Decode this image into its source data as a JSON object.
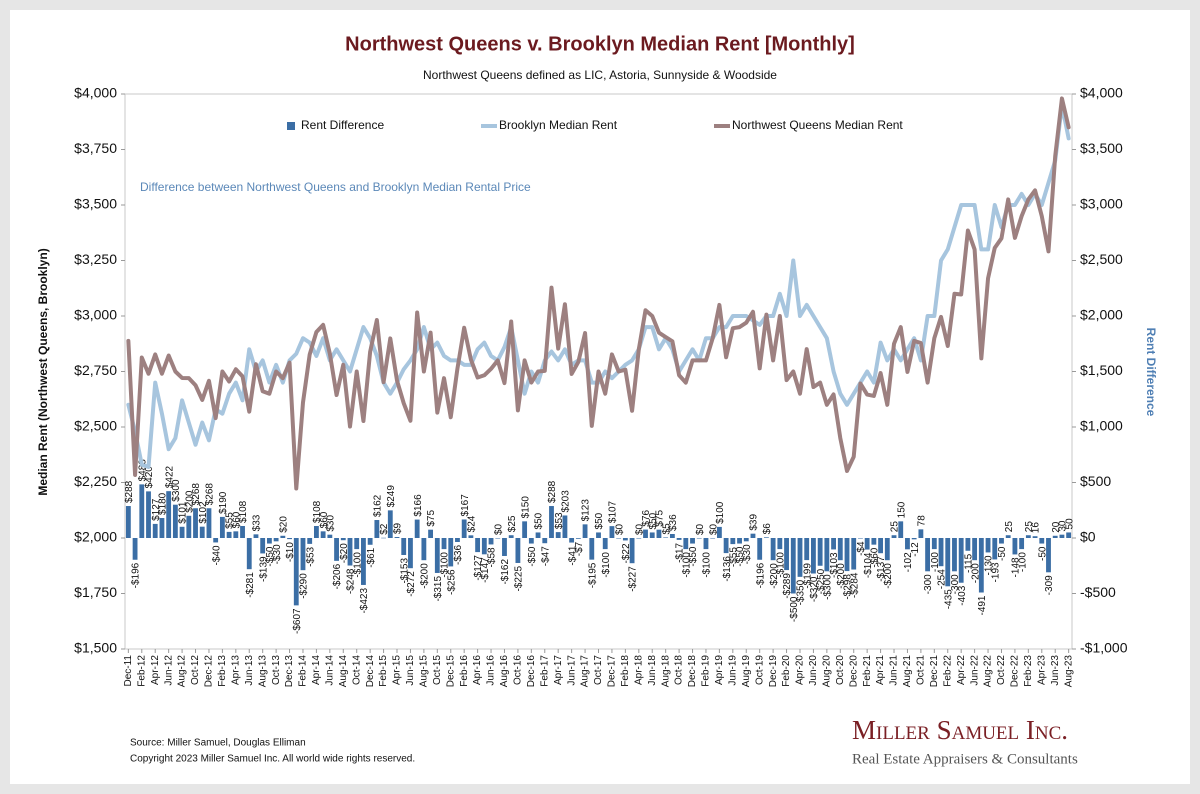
{
  "chart_data": {
    "type": "combo",
    "title": "Northwest Queens v. Brooklyn Median Rent [Monthly]",
    "subtitle": "Northwest Queens defined as LIC, Astoria, Sunnyside & Woodside",
    "annotation": "Difference between Northwest Queens and Brooklyn Median Rental Price",
    "ylabel": "Median Rent (Northwest Queens, Brooklyn)",
    "y2label": "Rent Difference",
    "legend": "top",
    "grid": false,
    "categories": [
      "Dec-11",
      null,
      "Feb-12",
      null,
      "Apr-12",
      null,
      "Jun-12",
      null,
      "Aug-12",
      null,
      "Oct-12",
      null,
      "Dec-12",
      null,
      "Feb-13",
      null,
      "Apr-13",
      null,
      "Jun-13",
      null,
      "Aug-13",
      null,
      "Oct-13",
      null,
      "Dec-13",
      null,
      "Feb-14",
      null,
      "Apr-14",
      null,
      "Jun-14",
      null,
      "Aug-14",
      null,
      "Oct-14",
      null,
      "Dec-14",
      null,
      "Feb-15",
      null,
      "Apr-15",
      null,
      "Jun-15",
      null,
      "Aug-15",
      null,
      "Oct-15",
      null,
      "Dec-15",
      null,
      "Feb-16",
      null,
      "Apr-16",
      null,
      "Jun-16",
      null,
      "Aug-16",
      null,
      "Oct-16",
      null,
      "Dec-16",
      null,
      "Feb-17",
      null,
      "Apr-17",
      null,
      "Jun-17",
      null,
      "Aug-17",
      null,
      "Oct-17",
      null,
      "Dec-17",
      null,
      "Feb-18",
      null,
      "Apr-18",
      null,
      "Jun-18",
      null,
      "Aug-18",
      null,
      "Oct-18",
      null,
      "Dec-18",
      null,
      "Feb-19",
      null,
      "Apr-19",
      null,
      "Jun-19",
      null,
      "Aug-19",
      null,
      "Oct-19",
      null,
      "Dec-19",
      null,
      "Feb-20",
      null,
      "Apr-20",
      null,
      "Jun-20",
      null,
      "Aug-20",
      null,
      "Oct-20",
      null,
      "Dec-20",
      null,
      "Feb-21",
      null,
      "Apr-21",
      null,
      "Jun-21",
      null,
      "Aug-21",
      null,
      "Oct-21",
      null,
      "Dec-21",
      null,
      "Feb-22",
      null,
      "Apr-22",
      null,
      "Jun-22",
      null,
      "Aug-22",
      null,
      "Oct-22",
      null,
      "Dec-22",
      null,
      "Feb-23",
      null,
      "Apr-23",
      null,
      "Jun-23",
      null,
      "Aug-23"
    ],
    "series": [
      {
        "name": "Rent Difference",
        "type": "bar",
        "axis": "y2",
        "color": "#3b6ea5",
        "values": [
          288,
          -196,
          483,
          420,
          127,
          180,
          422,
          300,
          101,
          200,
          268,
          102,
          268,
          -40,
          190,
          55,
          60,
          108,
          -281,
          33,
          -139,
          -50,
          -30,
          20,
          -10,
          -607,
          -290,
          -53,
          108,
          60,
          30,
          -206,
          -20,
          -248,
          -100,
          -423,
          -61,
          162,
          2,
          249,
          9,
          -153,
          -272,
          166,
          -200,
          75,
          -315,
          -100,
          -256,
          -36,
          167,
          24,
          -127,
          -147,
          -58,
          0,
          -162,
          25,
          -225,
          150,
          -50,
          50,
          -47,
          288,
          53,
          203,
          -41,
          -7,
          123,
          -195,
          50,
          -100,
          107,
          0,
          -22,
          -227,
          0,
          76,
          50,
          75,
          5,
          36,
          -17,
          -100,
          -50,
          0,
          -100,
          0,
          100,
          -136,
          -55,
          -50,
          -30,
          39,
          -196,
          6,
          -200,
          -100,
          -289,
          -500,
          -350,
          -199,
          -320,
          -250,
          -300,
          -103,
          -200,
          -298,
          -284,
          -4,
          -104,
          -60,
          -137,
          -200,
          25,
          150,
          -102,
          -12,
          78,
          -300,
          -100,
          -254,
          -435,
          -300,
          -403,
          -115,
          -200,
          -491,
          -130,
          -193,
          -50,
          25,
          -148,
          -100,
          25,
          16,
          -50,
          -309,
          20,
          30,
          50
        ],
        "value_labels": [
          "$288",
          "-$196",
          "$483",
          "$420",
          "$127",
          "$180",
          "$422",
          "$300",
          "$101",
          "$200",
          "$268",
          "$102",
          "$268",
          "-$40",
          "$190",
          "$55",
          "$60",
          "$108",
          "-$281",
          "$33",
          "-$139",
          "-$50",
          "-$30",
          "$20",
          "-$10",
          "-$607",
          "-$290",
          "-$53",
          "$108",
          "$60",
          "$30",
          "-$206",
          "-$20",
          "-$248",
          "-$100",
          "-$423",
          "-$61",
          "$162",
          "$2",
          "$249",
          "$9",
          "-$153",
          "-$272",
          "$166",
          "-$200",
          "$75",
          "-$315",
          "-$100",
          "-$256",
          "-$36",
          "$167",
          "$24",
          "-$127",
          "-$147",
          "-$58",
          "$0",
          "-$162",
          "$25",
          "-$225",
          "$150",
          "-$50",
          "$50",
          "-$47",
          "$288",
          "$53",
          "$203",
          "-$41",
          "-$7",
          "$123",
          "-$195",
          "$50",
          "-$100",
          "$107",
          "$0",
          "-$22",
          "-$227",
          "$0",
          "$76",
          "$50",
          "$75",
          "$5",
          "$36",
          "-$17",
          "-$100",
          "-$50",
          "$0",
          "-$100",
          "$0",
          "$100",
          "-$136",
          "-$55",
          "-$50",
          "-$30",
          "$39",
          "-$196",
          "$6",
          "-$200",
          "-$100",
          "-$289",
          "-$500",
          "-$350",
          "-$199",
          "-$320",
          "-$250",
          "-$300",
          "-$103",
          "-$200",
          "-$298",
          "-$284",
          "-$4",
          "-$104",
          "-$60",
          "-$137",
          "-$200",
          "25",
          "150",
          "-102",
          "-12",
          "78",
          "-300",
          "-100",
          "-254",
          "-435",
          "-300",
          "-403",
          "-115",
          "-200",
          "-491",
          "-130",
          "-193",
          "-50",
          "25",
          "-148",
          "-100",
          "25",
          "16",
          "-50",
          "-309",
          "20",
          "30",
          "50"
        ]
      },
      {
        "name": "Brooklyn Median Rent",
        "type": "line",
        "color": "#a7c5de",
        "values": [
          2600,
          2480,
          2330,
          2320,
          2700,
          2560,
          2400,
          2450,
          2620,
          2520,
          2420,
          2520,
          2440,
          2580,
          2560,
          2650,
          2700,
          2620,
          2850,
          2750,
          2800,
          2700,
          2780,
          2700,
          2800,
          2830,
          2900,
          2880,
          2820,
          2900,
          2800,
          2850,
          2800,
          2750,
          2850,
          2950,
          2900,
          2820,
          2700,
          2650,
          2700,
          2760,
          2800,
          2850,
          2950,
          2850,
          2880,
          2820,
          2800,
          2800,
          2780,
          2780,
          2850,
          2880,
          2820,
          2800,
          2860,
          2950,
          2800,
          2650,
          2750,
          2700,
          2800,
          2840,
          2800,
          2850,
          2780,
          2800,
          2800,
          2700,
          2700,
          2750,
          2720,
          2750,
          2780,
          2800,
          2850,
          2950,
          2950,
          2850,
          2900,
          2850,
          2750,
          2800,
          2850,
          2800,
          2900,
          2900,
          2950,
          2950,
          3000,
          3000,
          3000,
          2980,
          2960,
          3000,
          3000,
          3100,
          3000,
          3250,
          3000,
          3050,
          3000,
          2950,
          2900,
          2750,
          2650,
          2600,
          2650,
          2700,
          2750,
          2700,
          2880,
          2800,
          2850,
          2800,
          2850,
          2900,
          2800,
          3000,
          3000,
          3250,
          3300,
          3400,
          3500,
          3500,
          3500,
          3300,
          3300,
          3500,
          3400,
          3500,
          3500,
          3550,
          3500,
          3550,
          3500,
          3600,
          3700,
          3950,
          3800
        ]
      },
      {
        "name": "Northwest Queens Median Rent",
        "type": "line",
        "color": "#9d8080",
        "values": [
          2888,
          2284,
          2813,
          2740,
          2827,
          2740,
          2822,
          2750,
          2721,
          2720,
          2688,
          2622,
          2708,
          2540,
          2750,
          2705,
          2760,
          2728,
          2569,
          2783,
          2661,
          2650,
          2750,
          2720,
          2790,
          2223,
          2610,
          2827,
          2928,
          2960,
          2830,
          2644,
          2780,
          2502,
          2750,
          2527,
          2839,
          2982,
          2702,
          2899,
          2709,
          2607,
          2528,
          3016,
          2750,
          2925,
          2565,
          2720,
          2544,
          2764,
          2947,
          2804,
          2723,
          2733,
          2762,
          2800,
          2698,
          2975,
          2575,
          2800,
          2700,
          2750,
          2753,
          3128,
          2853,
          3053,
          2739,
          2793,
          2923,
          2505,
          2750,
          2650,
          2827,
          2750,
          2758,
          2573,
          2850,
          3026,
          3000,
          2925,
          2905,
          2886,
          2733,
          2700,
          2800,
          2800,
          2800,
          2900,
          3050,
          2814,
          2945,
          2950,
          2970,
          3019,
          2764,
          3006,
          2800,
          3000,
          2711,
          2750,
          2650,
          2851,
          2680,
          2700,
          2600,
          2647,
          2450,
          2302,
          2366,
          2696,
          2646,
          2640,
          2743,
          2600,
          2875,
          2950,
          2748,
          2888,
          2878,
          2700,
          2900,
          2996,
          2865,
          3100,
          3097,
          3385,
          3300,
          2809,
          3170,
          3307,
          3350,
          3525,
          3352,
          3450,
          3525,
          3566,
          3450,
          3291,
          3720,
          3980,
          3850
        ]
      }
    ],
    "ylim": [
      1500,
      4000
    ],
    "yticks": [
      {
        "value": 1500,
        "label": "$1,500"
      },
      {
        "value": 1750,
        "label": "$1,750"
      },
      {
        "value": 2000,
        "label": "$2,000"
      },
      {
        "value": 2250,
        "label": "$2,250"
      },
      {
        "value": 2500,
        "label": "$2,500"
      },
      {
        "value": 2750,
        "label": "$2,750"
      },
      {
        "value": 3000,
        "label": "$3,000"
      },
      {
        "value": 3250,
        "label": "$3,250"
      },
      {
        "value": 3500,
        "label": "$3,500"
      },
      {
        "value": 3750,
        "label": "$3,750"
      },
      {
        "value": 4000,
        "label": "$4,000"
      }
    ],
    "y2lim": [
      -1000,
      4000
    ],
    "y2ticks": [
      {
        "value": -1000,
        "label": "-$1,000"
      },
      {
        "value": -500,
        "label": "-$500"
      },
      {
        "value": 0,
        "label": "$0"
      },
      {
        "value": 500,
        "label": "$500"
      },
      {
        "value": 1000,
        "label": "$1,000"
      },
      {
        "value": 1500,
        "label": "$1,500"
      },
      {
        "value": 2000,
        "label": "$2,000"
      },
      {
        "value": 2500,
        "label": "$2,500"
      },
      {
        "value": 3000,
        "label": "$3,000"
      },
      {
        "value": 3500,
        "label": "$3,500"
      },
      {
        "value": 4000,
        "label": "$4,000"
      }
    ],
    "notes": [
      "Source: Miller Samuel, Douglas Elliman",
      "Copyright 2023 Miller Samuel Inc.  All world wide rights reserved."
    ],
    "logo": {
      "name": "Miller Samuel Inc.",
      "tagline": "Real Estate Appraisers & Consultants"
    }
  }
}
